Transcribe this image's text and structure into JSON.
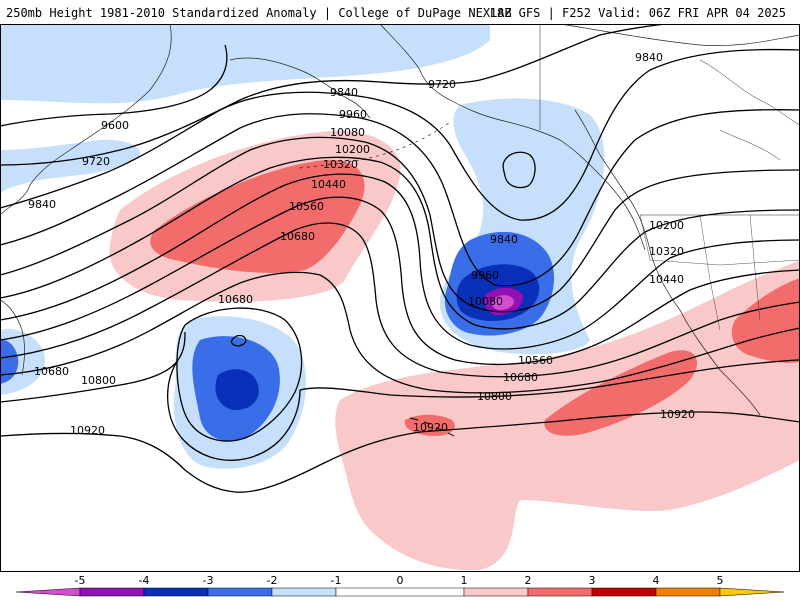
{
  "header": {
    "title": "250mb Height 1981-2010 Standardized Anomaly | College of DuPage NEXLAB",
    "valid": "18Z GFS | F252 Valid: 06Z FRI APR 04 2025"
  },
  "colors": {
    "anom_m5": "#d24fd0",
    "anom_m4": "#9210b4",
    "anom_m3": "#0a2fb8",
    "anom_m2": "#3a6ee8",
    "anom_m1": "#c6e0fb",
    "anom_p1": "#f9c8c8",
    "anom_p2": "#f36c6c",
    "anom_p3": "#c00000",
    "anom_p4": "#f08000",
    "anom_p5": "#f8c800"
  },
  "contour_labels": {
    "l9600": "9600",
    "l9720_w": "9720",
    "l9720_n": "9720",
    "l9840_w": "9840",
    "l9840_nw": "9840",
    "l9840_ne": "9840",
    "l9840_trough": "9840",
    "l9960_n": "9960",
    "l9960_trough": "9960",
    "l10080_n": "10080",
    "l10080_trough": "10080",
    "l10200_n": "10200",
    "l10200_e": "10200",
    "l10320_n": "10320",
    "l10320_e": "10320",
    "l10440_n": "10440",
    "l10440_e": "10440",
    "l10560_n": "10560",
    "l10560_s": "10560",
    "l10680_n": "10680",
    "l10680_low": "10680",
    "l10680_w": "10680",
    "l10680_s": "10680",
    "l10800_w": "10800",
    "l10800_s": "10800",
    "l10920_w": "10920",
    "l10920_c": "10920",
    "l10920_e": "10920"
  },
  "legend": {
    "ticks": [
      "-5",
      "-4",
      "-3",
      "-2",
      "-1",
      "0",
      "1",
      "2",
      "3",
      "4",
      "5"
    ]
  }
}
